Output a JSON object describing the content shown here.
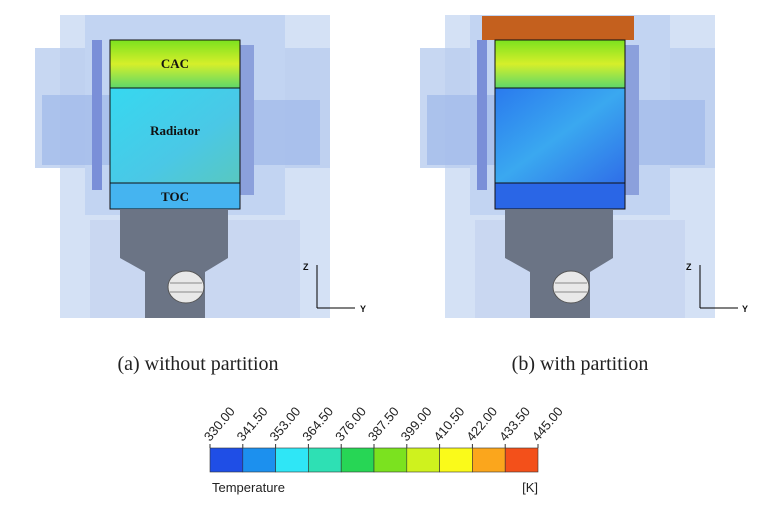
{
  "panels": [
    {
      "caption": "(a) without partition",
      "labels": [
        "CAC",
        "Radiator",
        "TOC"
      ],
      "axis_labels": [
        "Z",
        "Y"
      ]
    },
    {
      "caption": "(b) with partition",
      "axis_labels": [
        "Z",
        "Y"
      ]
    }
  ],
  "colorbar": {
    "title": "Temperature",
    "unit": "[K]",
    "colors": [
      "#1f4ee6",
      "#1c90ee",
      "#2fe6f6",
      "#2ee0b4",
      "#27d655",
      "#7be21f",
      "#cff21e",
      "#fafa1a",
      "#fba61c",
      "#f3501a"
    ],
    "ticks": [
      {
        "value": 330,
        "label": "330.00"
      },
      {
        "value": 341.5,
        "label": "341.50"
      },
      {
        "value": 353,
        "label": "353.00"
      },
      {
        "value": 364.5,
        "label": "364.50"
      },
      {
        "value": 376,
        "label": "376.00"
      },
      {
        "value": 387.5,
        "label": "387.50"
      },
      {
        "value": 399,
        "label": "399.00"
      },
      {
        "value": 410.5,
        "label": "410.50"
      },
      {
        "value": 422,
        "label": "422.00"
      },
      {
        "value": 433.5,
        "label": "433.50"
      },
      {
        "value": 445,
        "label": "445.00"
      }
    ]
  }
}
